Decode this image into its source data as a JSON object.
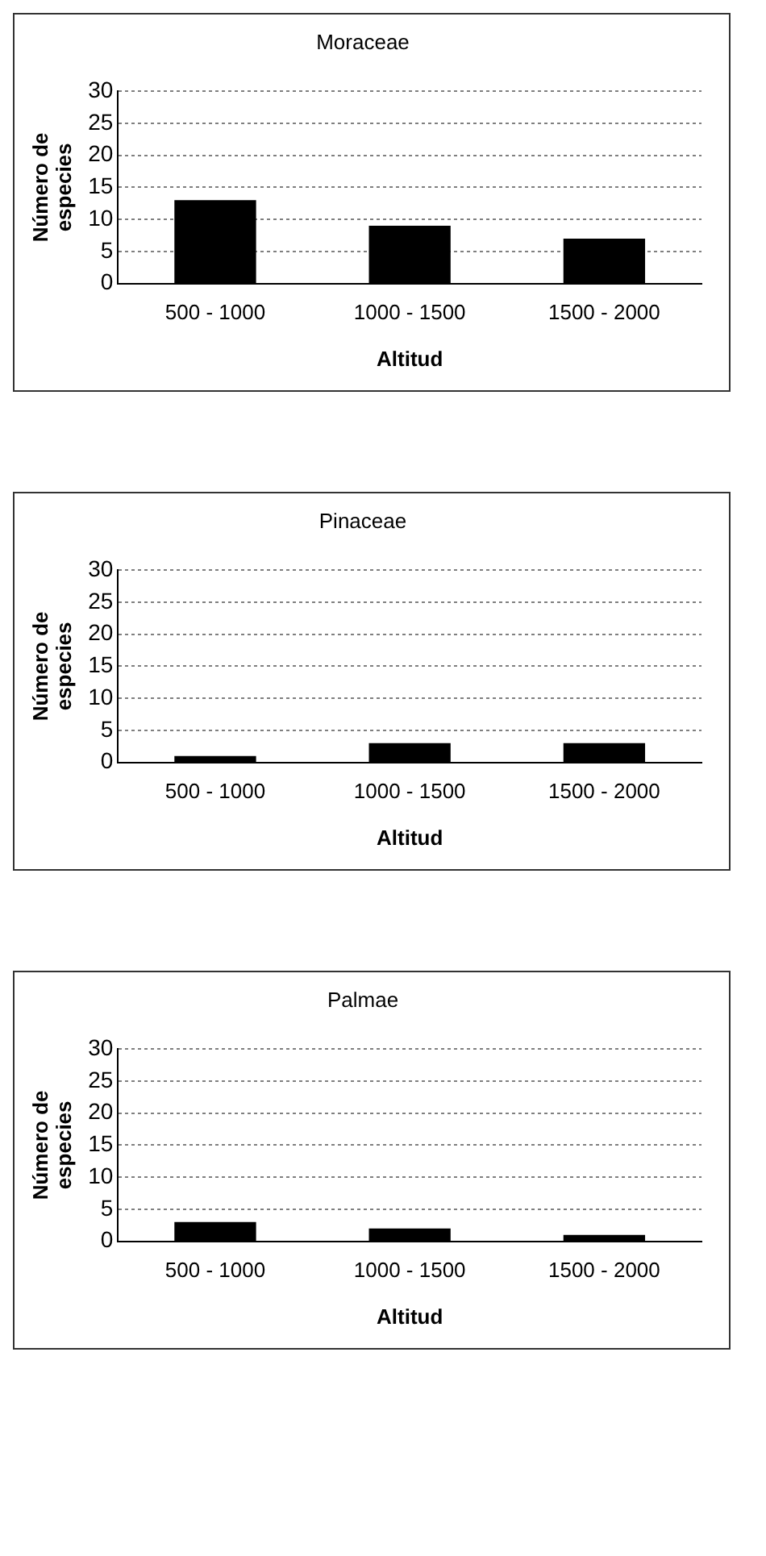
{
  "chart_data": [
    {
      "type": "bar",
      "title": "Moraceae",
      "xlabel": "Altitud",
      "ylabel": "Número de especies",
      "categories": [
        "500 - 1000",
        "1000 - 1500",
        "1500 - 2000"
      ],
      "values": [
        13,
        9,
        7
      ],
      "color": "#000000",
      "ylim": [
        0,
        30
      ],
      "yticks": [
        0,
        5,
        10,
        15,
        20,
        25,
        30
      ],
      "grid": "y",
      "legend": false
    },
    {
      "type": "bar",
      "title": "Pinaceae",
      "xlabel": "Altitud",
      "ylabel": "Número de especies",
      "categories": [
        "500 - 1000",
        "1000 - 1500",
        "1500 - 2000"
      ],
      "values": [
        1,
        3,
        3
      ],
      "color": "#000000",
      "ylim": [
        0,
        30
      ],
      "yticks": [
        0,
        5,
        10,
        15,
        20,
        25,
        30
      ],
      "grid": "y",
      "legend": false
    },
    {
      "type": "bar",
      "title": "Palmae",
      "xlabel": "Altitud",
      "ylabel": "Número de especies",
      "categories": [
        "500 - 1000",
        "1000 - 1500",
        "1500 - 2000"
      ],
      "values": [
        3,
        2,
        1
      ],
      "color": "#000000",
      "ylim": [
        0,
        30
      ],
      "yticks": [
        0,
        5,
        10,
        15,
        20,
        25,
        30
      ],
      "grid": "y",
      "legend": false
    }
  ]
}
